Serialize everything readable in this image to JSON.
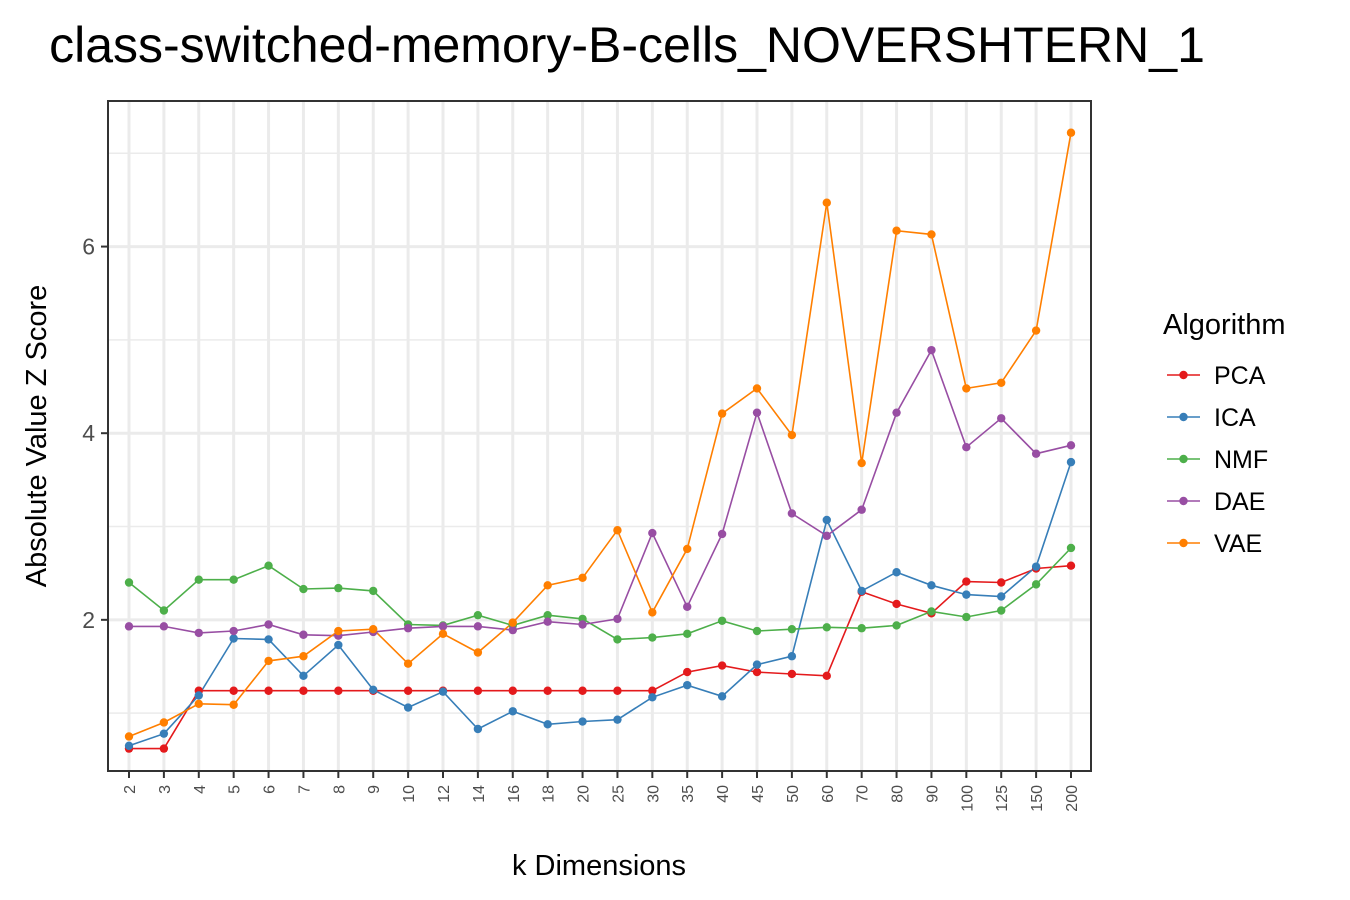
{
  "chart_data": {
    "type": "line",
    "title": "class-switched-memory-B-cells_NOVERSHTERN_1",
    "xlabel": "k Dimensions",
    "ylabel": "Absolute Value Z Score",
    "legend_title": "Algorithm",
    "legend_position": "right",
    "grid": true,
    "ylim": [
      0.38,
      7.56
    ],
    "y_ticks": [
      2,
      4,
      6
    ],
    "categories": [
      "2",
      "3",
      "4",
      "5",
      "6",
      "7",
      "8",
      "9",
      "10",
      "12",
      "14",
      "16",
      "18",
      "20",
      "25",
      "30",
      "35",
      "40",
      "45",
      "50",
      "60",
      "70",
      "80",
      "90",
      "100",
      "125",
      "150",
      "200"
    ],
    "series": [
      {
        "name": "PCA",
        "color": "#e41a1c",
        "values": [
          0.62,
          0.62,
          1.24,
          1.24,
          1.24,
          1.24,
          1.24,
          1.24,
          1.24,
          1.24,
          1.24,
          1.24,
          1.24,
          1.24,
          1.24,
          1.24,
          1.44,
          1.51,
          1.44,
          1.42,
          1.4,
          2.3,
          2.17,
          2.07,
          2.41,
          2.4,
          2.55,
          2.58
        ]
      },
      {
        "name": "ICA",
        "color": "#377eb8",
        "values": [
          0.65,
          0.78,
          1.19,
          1.8,
          1.79,
          1.4,
          1.73,
          1.25,
          1.06,
          1.23,
          0.83,
          1.02,
          0.88,
          0.91,
          0.93,
          1.17,
          1.3,
          1.18,
          1.52,
          1.61,
          3.07,
          2.31,
          2.51,
          2.37,
          2.27,
          2.25,
          2.57,
          3.69
        ]
      },
      {
        "name": "NMF",
        "color": "#4daf4a",
        "values": [
          2.4,
          2.1,
          2.43,
          2.43,
          2.58,
          2.33,
          2.34,
          2.31,
          1.95,
          1.94,
          2.05,
          1.94,
          2.05,
          2.01,
          1.79,
          1.81,
          1.85,
          1.99,
          1.88,
          1.9,
          1.92,
          1.91,
          1.94,
          2.09,
          2.03,
          2.1,
          2.38,
          2.77
        ]
      },
      {
        "name": "DAE",
        "color": "#984ea3",
        "values": [
          1.93,
          1.93,
          1.86,
          1.88,
          1.95,
          1.84,
          1.83,
          1.87,
          1.91,
          1.93,
          1.93,
          1.89,
          1.98,
          1.95,
          2.01,
          2.93,
          2.14,
          2.92,
          4.22,
          3.14,
          2.9,
          3.18,
          4.22,
          4.89,
          3.85,
          4.16,
          3.78,
          3.87
        ]
      },
      {
        "name": "VAE",
        "color": "#ff7f00",
        "values": [
          0.75,
          0.9,
          1.1,
          1.09,
          1.56,
          1.61,
          1.88,
          1.9,
          1.53,
          1.85,
          1.65,
          1.97,
          2.37,
          2.45,
          2.96,
          2.08,
          2.76,
          4.21,
          4.48,
          3.98,
          6.47,
          3.68,
          6.17,
          6.13,
          4.48,
          4.54,
          5.1,
          7.22
        ]
      }
    ]
  }
}
